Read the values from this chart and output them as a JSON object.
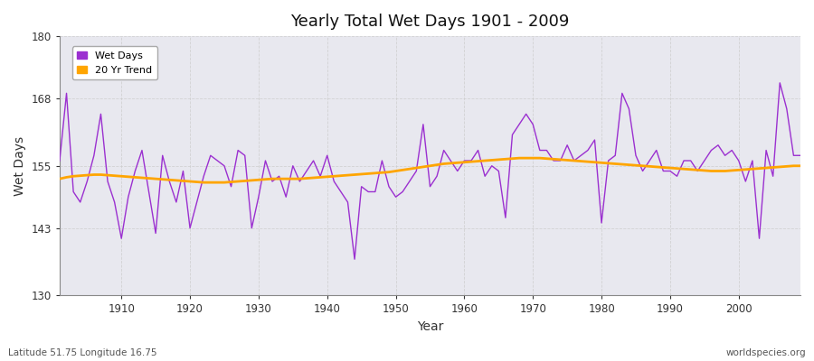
{
  "title": "Yearly Total Wet Days 1901 - 2009",
  "xlabel": "Year",
  "ylabel": "Wet Days",
  "subtitle_left": "Latitude 51.75 Longitude 16.75",
  "subtitle_right": "worldspecies.org",
  "ylim": [
    130,
    180
  ],
  "xlim": [
    1901,
    2009
  ],
  "yticks": [
    130,
    143,
    155,
    168,
    180
  ],
  "xticks": [
    1910,
    1920,
    1930,
    1940,
    1950,
    1960,
    1970,
    1980,
    1990,
    2000
  ],
  "wet_days_color": "#9B30D0",
  "trend_color": "#FFA500",
  "bg_color": "#FFFFFF",
  "plot_bg_color": "#E8E8EF",
  "grid_color": "#CCCCCC",
  "years": [
    1901,
    1902,
    1903,
    1904,
    1905,
    1906,
    1907,
    1908,
    1909,
    1910,
    1911,
    1912,
    1913,
    1914,
    1915,
    1916,
    1917,
    1918,
    1919,
    1920,
    1921,
    1922,
    1923,
    1924,
    1925,
    1926,
    1927,
    1928,
    1929,
    1930,
    1931,
    1932,
    1933,
    1934,
    1935,
    1936,
    1937,
    1938,
    1939,
    1940,
    1941,
    1942,
    1943,
    1944,
    1945,
    1946,
    1947,
    1948,
    1949,
    1950,
    1951,
    1952,
    1953,
    1954,
    1955,
    1956,
    1957,
    1958,
    1959,
    1960,
    1961,
    1962,
    1963,
    1964,
    1965,
    1966,
    1967,
    1968,
    1969,
    1970,
    1971,
    1972,
    1973,
    1974,
    1975,
    1976,
    1977,
    1978,
    1979,
    1980,
    1981,
    1982,
    1983,
    1984,
    1985,
    1986,
    1987,
    1988,
    1989,
    1990,
    1991,
    1992,
    1993,
    1994,
    1995,
    1996,
    1997,
    1998,
    1999,
    2000,
    2001,
    2002,
    2003,
    2004,
    2005,
    2006,
    2007,
    2008,
    2009
  ],
  "wet_days": [
    156,
    169,
    150,
    148,
    152,
    157,
    165,
    152,
    148,
    141,
    149,
    154,
    158,
    150,
    142,
    157,
    152,
    148,
    154,
    143,
    148,
    153,
    157,
    156,
    155,
    151,
    158,
    157,
    143,
    149,
    156,
    152,
    153,
    149,
    155,
    152,
    154,
    156,
    153,
    157,
    152,
    150,
    148,
    137,
    151,
    150,
    150,
    156,
    151,
    149,
    150,
    152,
    154,
    163,
    151,
    153,
    158,
    156,
    154,
    156,
    156,
    158,
    153,
    155,
    154,
    145,
    161,
    163,
    165,
    163,
    158,
    158,
    156,
    156,
    159,
    156,
    157,
    158,
    160,
    144,
    156,
    157,
    169,
    166,
    157,
    154,
    156,
    158,
    154,
    154,
    153,
    156,
    156,
    154,
    156,
    158,
    159,
    157,
    158,
    156,
    152,
    156,
    141,
    158,
    153,
    171,
    166,
    157,
    157
  ],
  "trend": [
    152.5,
    152.8,
    153.0,
    153.1,
    153.2,
    153.3,
    153.3,
    153.2,
    153.1,
    153.0,
    152.9,
    152.8,
    152.7,
    152.6,
    152.5,
    152.4,
    152.3,
    152.2,
    152.1,
    152.0,
    151.9,
    151.8,
    151.8,
    151.8,
    151.8,
    151.9,
    152.0,
    152.1,
    152.2,
    152.3,
    152.4,
    152.5,
    152.5,
    152.5,
    152.5,
    152.5,
    152.6,
    152.7,
    152.8,
    152.9,
    153.0,
    153.1,
    153.2,
    153.3,
    153.4,
    153.5,
    153.6,
    153.7,
    153.8,
    154.0,
    154.2,
    154.4,
    154.6,
    154.8,
    155.0,
    155.2,
    155.4,
    155.5,
    155.6,
    155.7,
    155.8,
    155.9,
    156.0,
    156.1,
    156.2,
    156.3,
    156.4,
    156.5,
    156.5,
    156.5,
    156.5,
    156.4,
    156.3,
    156.2,
    156.1,
    156.0,
    155.9,
    155.8,
    155.7,
    155.6,
    155.5,
    155.4,
    155.3,
    155.2,
    155.1,
    155.0,
    154.9,
    154.8,
    154.7,
    154.6,
    154.5,
    154.4,
    154.3,
    154.2,
    154.1,
    154.0,
    154.0,
    154.0,
    154.1,
    154.2,
    154.3,
    154.4,
    154.5,
    154.6,
    154.7,
    154.8,
    154.9,
    155.0,
    155.0
  ]
}
